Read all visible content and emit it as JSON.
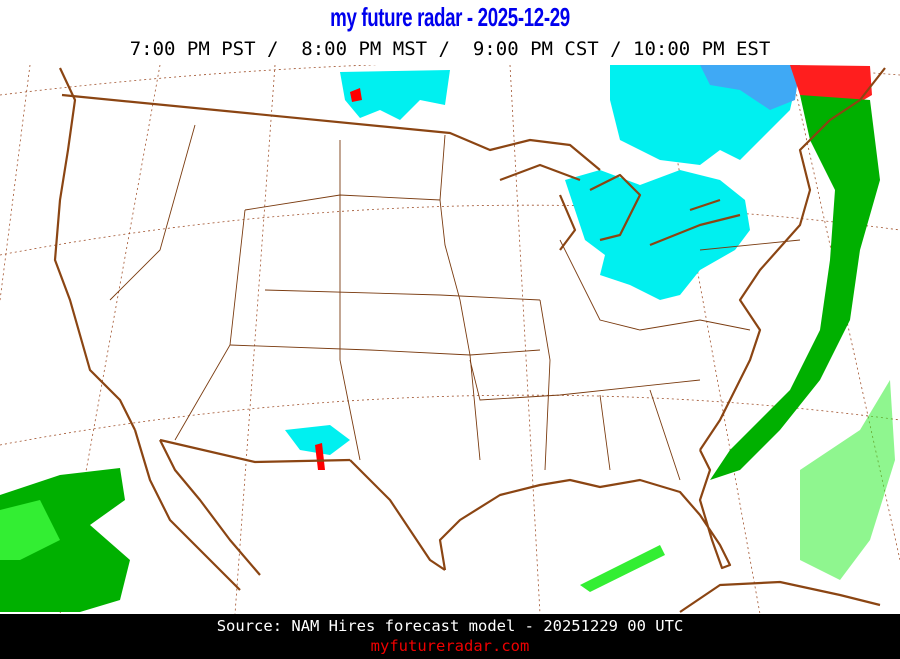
{
  "header": {
    "title": "my future radar - 2025-12-29",
    "time_line": "7:00 PM PST /  8:00 PM MST /  9:00 PM CST / 10:00 PM EST"
  },
  "footer": {
    "source": "Source: NAM Hires forecast model - 20251229 00 UTC",
    "site": "myfutureradar.com"
  },
  "colors": {
    "title": "#0000ee",
    "coastline": "#8b4513",
    "state_lines": "#7a3b10",
    "snow_light": "#00f0f0",
    "snow_heavy": "#3fa9f5",
    "rain_light": "#22dd22",
    "rain_moderate": "#00aa00",
    "heavy": "#ff0000",
    "site_link": "#ee0000"
  },
  "map": {
    "region": "Continental United States",
    "precipitation_areas": [
      "great-lakes-snow",
      "northern-plains-snow",
      "northeast-mixed",
      "east-coast-offshore-rain",
      "pacific-rain",
      "new-mexico-mixed"
    ]
  }
}
